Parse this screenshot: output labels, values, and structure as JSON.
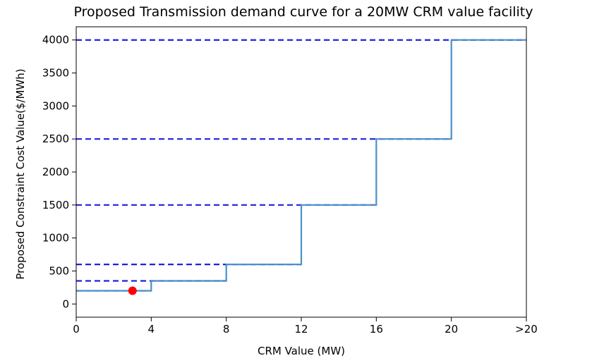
{
  "chart_data": {
    "type": "line",
    "title": "Proposed Transmission demand curve for a 20MW CRM value facility",
    "xlabel": "CRM Value (MW)",
    "ylabel": "Proposed Constraint Cost Value($/MWh)",
    "x_ticks": [
      {
        "value": 0,
        "label": "0"
      },
      {
        "value": 4,
        "label": "4"
      },
      {
        "value": 8,
        "label": "8"
      },
      {
        "value": 12,
        "label": "12"
      },
      {
        "value": 16,
        "label": "16"
      },
      {
        "value": 20,
        "label": "20"
      },
      {
        "value": 24,
        "label": ">20"
      }
    ],
    "y_ticks": [
      0,
      500,
      1000,
      1500,
      2000,
      2500,
      3000,
      3500,
      4000
    ],
    "xlim": [
      0,
      24
    ],
    "ylim": [
      -200,
      4200
    ],
    "grid": false,
    "series": [
      {
        "type": "step",
        "color": "#4a90c8",
        "x": [
          0,
          4,
          4,
          8,
          8,
          12,
          12,
          16,
          16,
          20,
          20,
          24
        ],
        "y": [
          200,
          200,
          350,
          350,
          600,
          600,
          1500,
          1500,
          2500,
          2500,
          4000,
          4000
        ]
      }
    ],
    "reference_lines": [
      {
        "y": 200,
        "style": "dashed",
        "color": "#2020e0",
        "x_end": 4
      },
      {
        "y": 350,
        "style": "dashed",
        "color": "#2020e0",
        "x_end": 8
      },
      {
        "y": 600,
        "style": "dashed",
        "color": "#2020e0",
        "x_end": 12
      },
      {
        "y": 1500,
        "style": "dashed",
        "color": "#2020e0",
        "x_end": 16
      },
      {
        "y": 2500,
        "style": "dashed",
        "color": "#2020e0",
        "x_end": 20
      },
      {
        "y": 4000,
        "style": "dashed",
        "color": "#2020e0",
        "x_end": 24
      }
    ],
    "points": [
      {
        "x": 3,
        "y": 200,
        "color": "#ff0000"
      }
    ]
  }
}
